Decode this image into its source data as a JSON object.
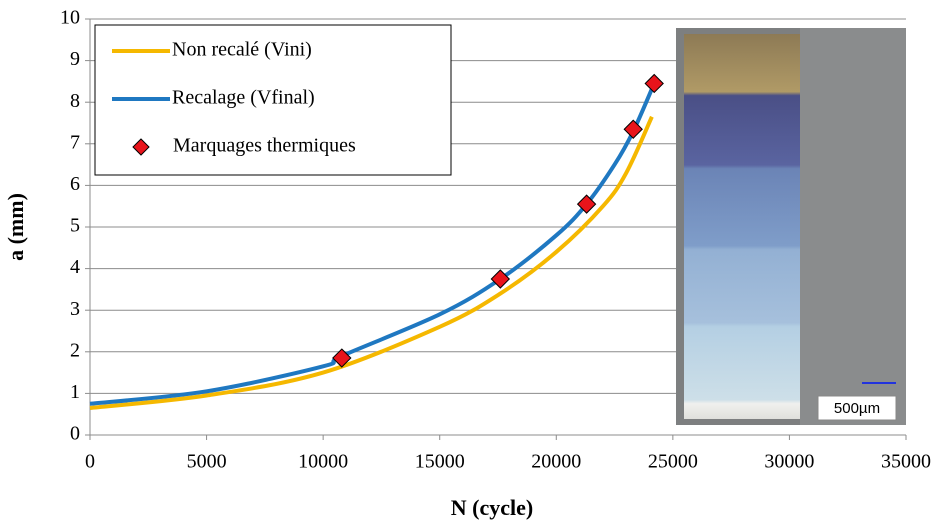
{
  "chart_data": {
    "type": "line",
    "x_label": "N (cycle)",
    "y_label": "a (mm)",
    "xlim": [
      0,
      35000
    ],
    "xticks": [
      0,
      5000,
      10000,
      15000,
      20000,
      25000,
      30000,
      35000
    ],
    "ylim": [
      0,
      10
    ],
    "yticks": [
      0,
      1,
      2,
      3,
      4,
      5,
      6,
      7,
      8,
      9,
      10
    ],
    "grid": true,
    "legend": "upper left",
    "series": [
      {
        "name": "Non recalé (Vini)",
        "color": "#f5b800",
        "kind": "line",
        "x": [
          0,
          5000,
          10000,
          15000,
          17600,
          20000,
          22000,
          23000,
          24100
        ],
        "values": [
          0.65,
          0.95,
          1.5,
          2.6,
          3.4,
          4.4,
          5.5,
          6.3,
          7.65
        ]
      },
      {
        "name": "Recalage (Vfinal)",
        "color": "#1f78c1",
        "kind": "line",
        "x": [
          0,
          5000,
          10000,
          10800,
          15000,
          17600,
          20000,
          21300,
          22500,
          23300,
          24200
        ],
        "values": [
          0.75,
          1.05,
          1.65,
          1.9,
          2.9,
          3.75,
          4.8,
          5.55,
          6.5,
          7.3,
          8.45
        ]
      },
      {
        "name": "Marquages thermiques",
        "color": "#e8141b",
        "kind": "scatter",
        "x": [
          10800,
          17600,
          21300,
          23300,
          24200
        ],
        "values": [
          1.85,
          3.75,
          5.55,
          7.35,
          8.45
        ]
      }
    ],
    "inset_scale_label": "500µm"
  }
}
